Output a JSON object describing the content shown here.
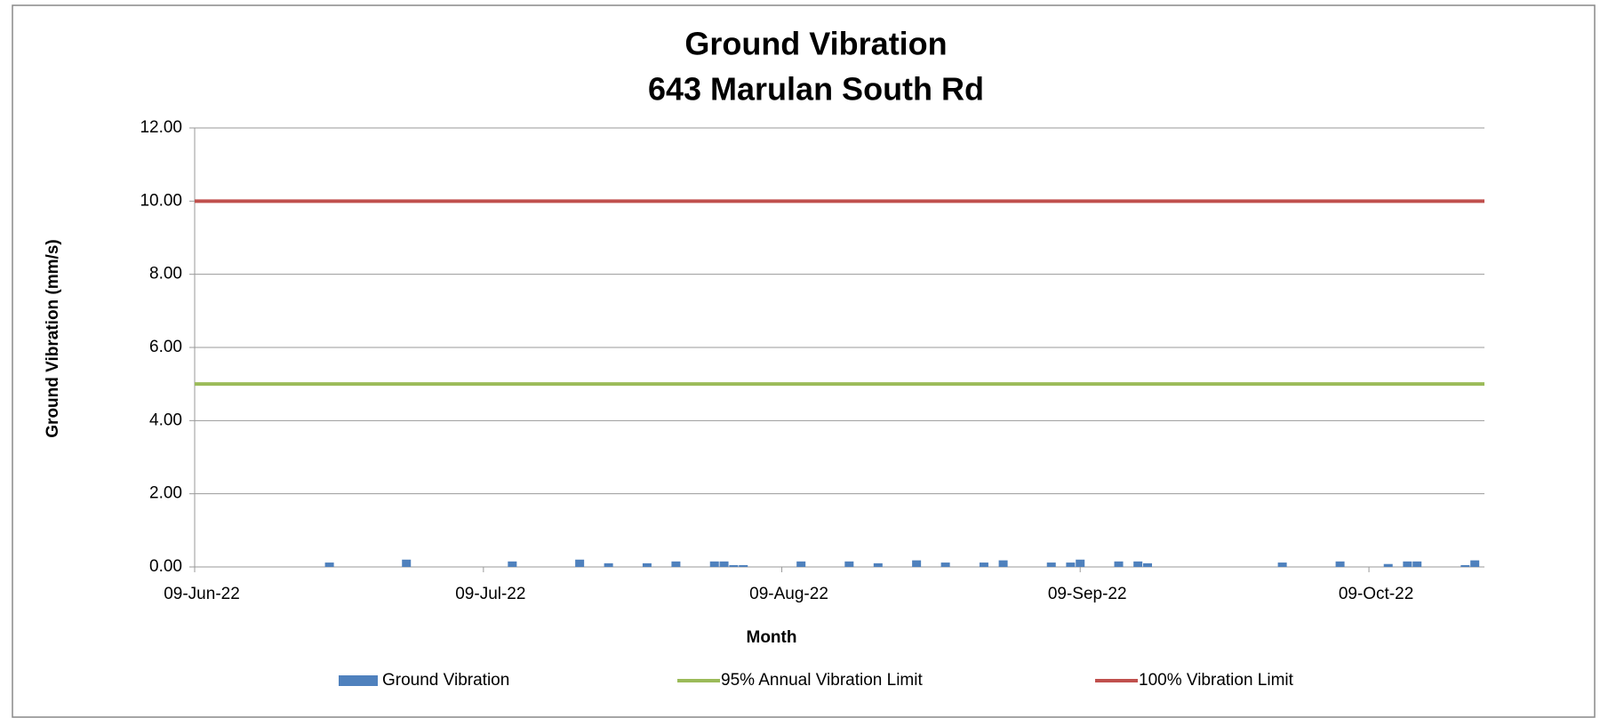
{
  "chart_data": {
    "type": "bar",
    "title": "Ground Vibration",
    "subtitle": "643 Marulan South Rd",
    "x_label": "Month",
    "y_label": "Ground Vibration (mm/s)",
    "xlim": [
      "2022-06-09",
      "2022-10-21"
    ],
    "xticks": [
      {
        "value": "2022-06-09",
        "label": "09-Jun-22"
      },
      {
        "value": "2022-07-09",
        "label": "09-Jul-22"
      },
      {
        "value": "2022-08-09",
        "label": "09-Aug-22"
      },
      {
        "value": "2022-09-09",
        "label": "09-Sep-22"
      },
      {
        "value": "2022-10-09",
        "label": "09-Oct-22"
      }
    ],
    "ylim": [
      0,
      12
    ],
    "yticks": [
      {
        "value": 0,
        "label": "0.00"
      },
      {
        "value": 2,
        "label": "2.00"
      },
      {
        "value": 4,
        "label": "4.00"
      },
      {
        "value": 6,
        "label": "6.00"
      },
      {
        "value": 8,
        "label": "8.00"
      },
      {
        "value": 10,
        "label": "10.00"
      },
      {
        "value": 12,
        "label": "12.00"
      }
    ],
    "grid": true,
    "legend": "bottom",
    "series": [
      {
        "name": "Ground Vibration",
        "type": "bar",
        "color": "#4f81bd",
        "x": [
          "2022-06-23",
          "2022-07-01",
          "2022-07-12",
          "2022-07-19",
          "2022-07-22",
          "2022-07-26",
          "2022-07-29",
          "2022-08-02",
          "2022-08-03",
          "2022-08-04",
          "2022-08-05",
          "2022-08-11",
          "2022-08-16",
          "2022-08-19",
          "2022-08-23",
          "2022-08-26",
          "2022-08-30",
          "2022-09-01",
          "2022-09-06",
          "2022-09-08",
          "2022-09-09",
          "2022-09-13",
          "2022-09-15",
          "2022-09-16",
          "2022-09-30",
          "2022-10-06",
          "2022-10-11",
          "2022-10-13",
          "2022-10-14",
          "2022-10-19",
          "2022-10-20"
        ],
        "values": [
          0.12,
          0.2,
          0.15,
          0.2,
          0.1,
          0.1,
          0.15,
          0.15,
          0.15,
          0.05,
          0.05,
          0.15,
          0.15,
          0.1,
          0.18,
          0.12,
          0.12,
          0.18,
          0.12,
          0.12,
          0.2,
          0.15,
          0.15,
          0.1,
          0.12,
          0.15,
          0.08,
          0.15,
          0.15,
          0.05,
          0.18
        ]
      },
      {
        "name": "95% Annual Vibration Limit",
        "type": "line",
        "color": "#9bbb59",
        "x": [
          "2022-06-09",
          "2022-10-21"
        ],
        "values": [
          5,
          5
        ]
      },
      {
        "name": "100% Vibration Limit",
        "type": "line",
        "color": "#c0504d",
        "x": [
          "2022-06-09",
          "2022-10-21"
        ],
        "values": [
          10,
          10
        ]
      }
    ]
  }
}
